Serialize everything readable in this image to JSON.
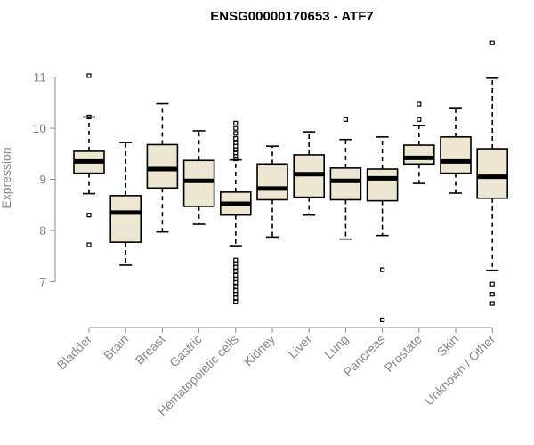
{
  "chart_data": {
    "type": "boxplot",
    "title": "ENSG00000170653 - ATF7",
    "xlabel": "",
    "ylabel": "Expression",
    "ylim": [
      6.1,
      11.9
    ],
    "yticks": [
      7,
      8,
      9,
      10,
      11
    ],
    "box_color": "#ede7d1",
    "categories": [
      "Bladder",
      "Brain",
      "Breast",
      "Gastric",
      "Hematopoietic cells",
      "Kidney",
      "Liver",
      "Lung",
      "Pancreas",
      "Prostate",
      "Skin",
      "Unknown / Other"
    ],
    "boxes": [
      {
        "name": "Bladder",
        "whisker_low": 8.72,
        "q1": 9.12,
        "median": 9.35,
        "q3": 9.55,
        "whisker_high": 10.22,
        "outliers": [
          11.03,
          10.22,
          8.3,
          7.72
        ]
      },
      {
        "name": "Brain",
        "whisker_low": 7.32,
        "q1": 7.77,
        "median": 8.35,
        "q3": 8.68,
        "whisker_high": 9.72,
        "outliers": []
      },
      {
        "name": "Breast",
        "whisker_low": 7.97,
        "q1": 8.83,
        "median": 9.2,
        "q3": 9.68,
        "whisker_high": 10.48,
        "outliers": []
      },
      {
        "name": "Gastric",
        "whisker_low": 8.12,
        "q1": 8.47,
        "median": 8.97,
        "q3": 9.37,
        "whisker_high": 9.95,
        "outliers": []
      },
      {
        "name": "Hematopoietic cells",
        "whisker_low": 7.7,
        "q1": 8.3,
        "median": 8.52,
        "q3": 8.75,
        "whisker_high": 9.38,
        "outliers": [
          10.1,
          10.0,
          9.9,
          9.8,
          9.72,
          9.65,
          9.58,
          9.52,
          9.45,
          9.4,
          7.42,
          7.35,
          7.28,
          7.2,
          7.12,
          7.05,
          6.98,
          6.9,
          6.82,
          6.75,
          6.68,
          6.6
        ]
      },
      {
        "name": "Kidney",
        "whisker_low": 7.87,
        "q1": 8.6,
        "median": 8.82,
        "q3": 9.3,
        "whisker_high": 9.65,
        "outliers": []
      },
      {
        "name": "Liver",
        "whisker_low": 8.3,
        "q1": 8.65,
        "median": 9.1,
        "q3": 9.48,
        "whisker_high": 9.93,
        "outliers": []
      },
      {
        "name": "Lung",
        "whisker_low": 7.83,
        "q1": 8.6,
        "median": 8.97,
        "q3": 9.22,
        "whisker_high": 9.78,
        "outliers": [
          10.17
        ]
      },
      {
        "name": "Pancreas",
        "whisker_low": 7.9,
        "q1": 8.58,
        "median": 9.02,
        "q3": 9.2,
        "whisker_high": 9.83,
        "outliers": [
          7.23,
          6.25
        ]
      },
      {
        "name": "Prostate",
        "whisker_low": 8.92,
        "q1": 9.3,
        "median": 9.42,
        "q3": 9.67,
        "whisker_high": 10.05,
        "outliers": [
          10.17,
          10.47
        ]
      },
      {
        "name": "Skin",
        "whisker_low": 8.73,
        "q1": 9.12,
        "median": 9.35,
        "q3": 9.83,
        "whisker_high": 10.4,
        "outliers": []
      },
      {
        "name": "Unknown / Other",
        "whisker_low": 7.22,
        "q1": 8.63,
        "median": 9.05,
        "q3": 9.6,
        "whisker_high": 10.98,
        "outliers": [
          11.67,
          6.95,
          6.75,
          6.57
        ]
      }
    ]
  }
}
